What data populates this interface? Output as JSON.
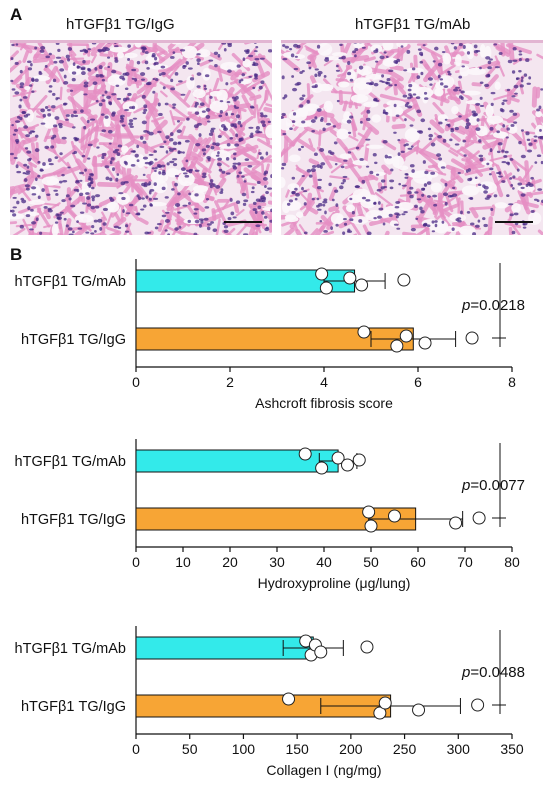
{
  "panels": {
    "a_label": "A",
    "b_label": "B"
  },
  "micrographs": [
    {
      "title": "hTGFβ1 TG/IgG"
    },
    {
      "title": "hTGFβ1 TG/mAb"
    }
  ],
  "colors": {
    "mab_bar": "#33eaea",
    "igg_bar": "#f7a535",
    "tissue_pink": "#e68fc4",
    "nuclei": "#4a2a86"
  },
  "chart_data": [
    {
      "type": "bar",
      "orientation": "horizontal",
      "categories": [
        "hTGFβ1 TG/mAb",
        "hTGFβ1 TG/IgG"
      ],
      "values": [
        4.65,
        5.9
      ],
      "error": [
        0.65,
        0.9
      ],
      "points": [
        [
          3.95,
          4.05,
          4.55,
          4.8,
          5.7
        ],
        [
          4.85,
          5.55,
          5.75,
          6.15,
          7.15
        ]
      ],
      "xlabel": "Ashcroft fibrosis score",
      "xlim": [
        0,
        8
      ],
      "xticks": [
        0,
        2,
        4,
        6,
        8
      ],
      "annotation": {
        "p_label": "p",
        "p_value": "=0.0218"
      }
    },
    {
      "type": "bar",
      "orientation": "horizontal",
      "categories": [
        "hTGFβ1 TG/mAb",
        "hTGFβ1 TG/IgG"
      ],
      "values": [
        43,
        59.5
      ],
      "error": [
        4,
        10
      ],
      "points": [
        [
          36,
          39.5,
          43,
          45,
          47.5
        ],
        [
          49.5,
          50,
          55,
          68,
          73
        ]
      ],
      "xlabel": "Hydroxyproline (μg/lung)",
      "xlim": [
        0,
        80
      ],
      "xticks": [
        0,
        10,
        20,
        30,
        40,
        50,
        60,
        70,
        80
      ],
      "annotation": {
        "p_label": "p",
        "p_value": "=0.0077"
      }
    },
    {
      "type": "bar",
      "orientation": "horizontal",
      "categories": [
        "hTGFβ1 TG/mAb",
        "hTGFβ1 TG/IgG"
      ],
      "values": [
        165,
        237
      ],
      "error": [
        28,
        65
      ],
      "points": [
        [
          158,
          163,
          167,
          172,
          215
        ],
        [
          142,
          227,
          232,
          263,
          318
        ]
      ],
      "xlabel": "Collagen I  (ng/mg)",
      "xlim": [
        0,
        350
      ],
      "xticks": [
        0,
        50,
        100,
        150,
        200,
        250,
        300,
        350
      ],
      "annotation": {
        "p_label": "p",
        "p_value": "=0.0488"
      }
    }
  ]
}
